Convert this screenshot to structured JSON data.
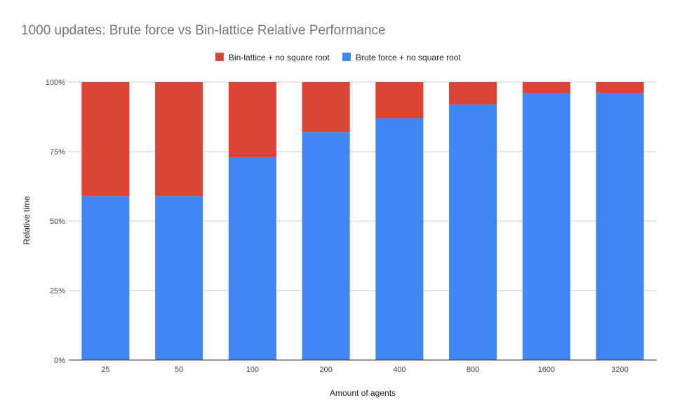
{
  "chart_data": {
    "type": "bar",
    "stacked": true,
    "normalized": true,
    "title": "1000 updates: Brute force vs Bin-lattice Relative Performance",
    "xlabel": "Amount of agents",
    "ylabel": "Relative time",
    "categories": [
      "25",
      "50",
      "100",
      "200",
      "400",
      "800",
      "1600",
      "3200"
    ],
    "ylim": [
      0,
      100
    ],
    "yticks": [
      "0%",
      "25%",
      "50%",
      "75%",
      "100%"
    ],
    "legend_position": "top",
    "grid": true,
    "series": [
      {
        "name": "Brute force + no square root",
        "color": "#4285f4",
        "values": [
          59,
          59,
          73,
          82,
          87,
          92,
          96,
          96
        ]
      },
      {
        "name": "Bin-lattice + no square root",
        "color": "#db4437",
        "values": [
          41,
          41,
          27,
          18,
          13,
          8,
          4,
          4
        ]
      }
    ]
  }
}
